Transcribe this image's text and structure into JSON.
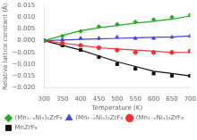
{
  "chart_data": {
    "type": "scatter",
    "xlabel": "Temperature (K)",
    "ylabel": "Relative lattice constant (Å)",
    "xlim": [
      300,
      700
    ],
    "ylim": [
      -0.02,
      0.015
    ],
    "xticks": [
      300,
      350,
      400,
      450,
      500,
      550,
      600,
      650,
      700
    ],
    "yticks": [
      {
        "value": -0.02,
        "label": "−0.020"
      },
      {
        "value": -0.015,
        "label": "−0.015"
      },
      {
        "value": -0.01,
        "label": "−0.010"
      },
      {
        "value": -0.005,
        "label": "−0.005"
      },
      {
        "value": 0.0,
        "label": "0.000"
      },
      {
        "value": 0.005,
        "label": "0.005"
      },
      {
        "value": 0.01,
        "label": "0.010"
      },
      {
        "value": 0.015,
        "label": "0.015"
      }
    ],
    "grid": false,
    "legend": "lower left",
    "x": [
      300,
      350,
      400,
      450,
      500,
      550,
      600,
      650,
      700
    ],
    "series": [
      {
        "name": "(Mn₁₋ₓNiₓ)₂ZrF₆",
        "color": "#22aa22",
        "marker": "diamond",
        "values": [
          0.0,
          0.002,
          0.004,
          0.006,
          0.007,
          0.008,
          0.009,
          0.01,
          0.011
        ],
        "fit": [
          0.0,
          0.0022,
          0.0043,
          0.0055,
          0.0065,
          0.0075,
          0.0083,
          0.0092,
          0.0105
        ]
      },
      {
        "name": "(Mn₁₋ₓNiₓ)₂ZrF₆",
        "color": "#4444dd",
        "marker": "triangle",
        "values": [
          0.0,
          0.0005,
          0.001,
          0.001,
          0.0015,
          0.001,
          0.001,
          0.0015,
          0.002
        ],
        "fit": [
          0.0,
          0.0003,
          0.0006,
          0.0008,
          0.001,
          0.0012,
          0.0014,
          0.0016,
          0.002
        ]
      },
      {
        "name": "(Mn₁₋ₓNiₓ)₂ZrF₆",
        "color": "#ee3333",
        "marker": "circle",
        "values": [
          0.0,
          -0.001,
          -0.002,
          -0.003,
          -0.004,
          -0.005,
          -0.005,
          -0.005,
          -0.0045
        ],
        "fit": [
          0.0,
          -0.001,
          -0.002,
          -0.003,
          -0.0035,
          -0.004,
          -0.0045,
          -0.005,
          -0.005
        ]
      },
      {
        "name": "MnZrF₆",
        "color": "#111111",
        "marker": "square",
        "values": [
          0.0,
          -0.002,
          -0.004,
          -0.007,
          -0.01,
          -0.012,
          -0.014,
          -0.015,
          -0.015
        ],
        "fit": [
          0.0,
          -0.002,
          -0.004,
          -0.0065,
          -0.009,
          -0.011,
          -0.013,
          -0.014,
          -0.015
        ]
      }
    ]
  }
}
